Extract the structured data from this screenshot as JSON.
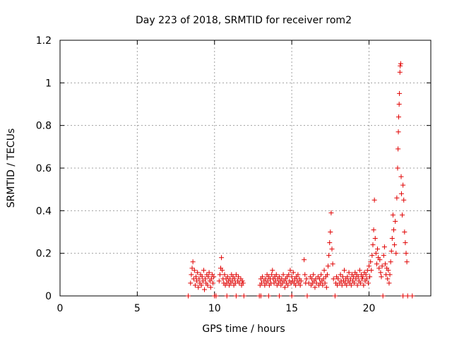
{
  "chart_data": {
    "type": "scatter",
    "title": "Day 223 of 2018, SRMTID for receiver rom2",
    "xlabel": "GPS time / hours",
    "ylabel": "SRMTID / TECUs",
    "xlim": [
      0,
      24
    ],
    "ylim": [
      0,
      1.2
    ],
    "xticks": [
      0,
      5,
      10,
      15,
      20
    ],
    "yticks": [
      0,
      0.2,
      0.4,
      0.6,
      0.8,
      1,
      1.2
    ],
    "xtick_labels": [
      "0",
      "5",
      "10",
      "15",
      "20"
    ],
    "ytick_labels": [
      "0",
      "0.2",
      "0.4",
      "0.6",
      "0.8",
      "1",
      "1.2"
    ],
    "grid": true,
    "marker": "+",
    "color": "#e00000",
    "series": [
      {
        "name": "rom2",
        "points": [
          [
            8.3,
            0.0
          ],
          [
            8.45,
            0.06
          ],
          [
            8.5,
            0.1
          ],
          [
            8.55,
            0.13
          ],
          [
            8.6,
            0.16
          ],
          [
            8.65,
            0.08
          ],
          [
            8.7,
            0.12
          ],
          [
            8.75,
            0.05
          ],
          [
            8.8,
            0.09
          ],
          [
            8.85,
            0.07
          ],
          [
            8.9,
            0.11
          ],
          [
            8.95,
            0.04
          ],
          [
            9.0,
            0.08
          ],
          [
            9.05,
            0.06
          ],
          [
            9.1,
            0.1
          ],
          [
            9.15,
            0.05
          ],
          [
            9.2,
            0.09
          ],
          [
            9.25,
            0.07
          ],
          [
            9.3,
            0.12
          ],
          [
            9.35,
            0.03
          ],
          [
            9.4,
            0.08
          ],
          [
            9.45,
            0.06
          ],
          [
            9.5,
            0.1
          ],
          [
            9.55,
            0.05
          ],
          [
            9.6,
            0.09
          ],
          [
            9.65,
            0.11
          ],
          [
            9.7,
            0.07
          ],
          [
            9.75,
            0.04
          ],
          [
            9.8,
            0.08
          ],
          [
            9.85,
            0.1
          ],
          [
            9.9,
            0.06
          ],
          [
            9.95,
            0.09
          ],
          [
            10.0,
            0.0
          ],
          [
            10.1,
            0.0
          ],
          [
            10.3,
            0.07
          ],
          [
            10.35,
            0.1
          ],
          [
            10.4,
            0.13
          ],
          [
            10.45,
            0.18
          ],
          [
            10.5,
            0.12
          ],
          [
            10.55,
            0.08
          ],
          [
            10.6,
            0.06
          ],
          [
            10.65,
            0.1
          ],
          [
            10.7,
            0.05
          ],
          [
            10.75,
            0.08
          ],
          [
            10.8,
            0.06
          ],
          [
            10.85,
            0.09
          ],
          [
            10.9,
            0.07
          ],
          [
            10.95,
            0.05
          ],
          [
            11.0,
            0.08
          ],
          [
            11.05,
            0.06
          ],
          [
            11.1,
            0.1
          ],
          [
            11.15,
            0.07
          ],
          [
            11.2,
            0.09
          ],
          [
            11.25,
            0.05
          ],
          [
            11.3,
            0.08
          ],
          [
            11.35,
            0.06
          ],
          [
            11.4,
            0.1
          ],
          [
            11.5,
            0.07
          ],
          [
            11.55,
            0.09
          ],
          [
            11.6,
            0.06
          ],
          [
            11.7,
            0.08
          ],
          [
            11.75,
            0.05
          ],
          [
            11.8,
            0.07
          ],
          [
            11.85,
            0.06
          ],
          [
            10.8,
            0.0
          ],
          [
            11.4,
            0.0
          ],
          [
            11.9,
            0.0
          ],
          [
            12.9,
            0.0
          ],
          [
            13.0,
            0.0
          ],
          [
            13.5,
            0.0
          ],
          [
            14.2,
            0.0
          ],
          [
            15.0,
            0.0
          ],
          [
            12.95,
            0.05
          ],
          [
            13.0,
            0.08
          ],
          [
            13.05,
            0.06
          ],
          [
            13.1,
            0.09
          ],
          [
            13.2,
            0.07
          ],
          [
            13.25,
            0.05
          ],
          [
            13.3,
            0.08
          ],
          [
            13.35,
            0.06
          ],
          [
            13.4,
            0.1
          ],
          [
            13.45,
            0.07
          ],
          [
            13.5,
            0.09
          ],
          [
            13.55,
            0.05
          ],
          [
            13.6,
            0.08
          ],
          [
            13.65,
            0.06
          ],
          [
            13.7,
            0.1
          ],
          [
            13.75,
            0.12
          ],
          [
            13.8,
            0.08
          ],
          [
            13.85,
            0.06
          ],
          [
            13.9,
            0.09
          ],
          [
            13.95,
            0.07
          ],
          [
            14.0,
            0.1
          ],
          [
            14.05,
            0.05
          ],
          [
            14.1,
            0.08
          ],
          [
            14.15,
            0.06
          ],
          [
            14.2,
            0.09
          ],
          [
            14.25,
            0.07
          ],
          [
            14.3,
            0.05
          ],
          [
            14.35,
            0.08
          ],
          [
            14.4,
            0.06
          ],
          [
            14.45,
            0.1
          ],
          [
            14.5,
            0.07
          ],
          [
            14.55,
            0.04
          ],
          [
            14.6,
            0.08
          ],
          [
            14.65,
            0.06
          ],
          [
            14.7,
            0.09
          ],
          [
            14.75,
            0.05
          ],
          [
            14.8,
            0.1
          ],
          [
            14.85,
            0.07
          ],
          [
            14.9,
            0.12
          ],
          [
            14.95,
            0.06
          ],
          [
            15.0,
            0.09
          ],
          [
            15.05,
            0.07
          ],
          [
            15.1,
            0.11
          ],
          [
            15.15,
            0.06
          ],
          [
            15.2,
            0.08
          ],
          [
            15.25,
            0.05
          ],
          [
            15.3,
            0.09
          ],
          [
            15.35,
            0.07
          ],
          [
            15.4,
            0.1
          ],
          [
            15.45,
            0.06
          ],
          [
            15.5,
            0.08
          ],
          [
            15.55,
            0.05
          ],
          [
            15.6,
            0.07
          ],
          [
            15.8,
            0.17
          ],
          [
            15.85,
            0.1
          ],
          [
            15.9,
            0.06
          ],
          [
            15.95,
            0.08
          ],
          [
            16.0,
            0.0
          ],
          [
            16.1,
            0.06
          ],
          [
            16.2,
            0.09
          ],
          [
            16.25,
            0.05
          ],
          [
            16.3,
            0.08
          ],
          [
            16.35,
            0.06
          ],
          [
            16.4,
            0.1
          ],
          [
            16.45,
            0.07
          ],
          [
            16.5,
            0.04
          ],
          [
            16.55,
            0.08
          ],
          [
            16.6,
            0.06
          ],
          [
            16.7,
            0.09
          ],
          [
            16.75,
            0.05
          ],
          [
            16.8,
            0.08
          ],
          [
            16.85,
            0.06
          ],
          [
            16.9,
            0.1
          ],
          [
            16.95,
            0.07
          ],
          [
            17.0,
            0.05
          ],
          [
            17.05,
            0.08
          ],
          [
            17.1,
            0.12
          ],
          [
            17.15,
            0.06
          ],
          [
            17.2,
            0.09
          ],
          [
            17.25,
            0.04
          ],
          [
            17.3,
            0.1
          ],
          [
            17.35,
            0.14
          ],
          [
            17.4,
            0.19
          ],
          [
            17.45,
            0.25
          ],
          [
            17.5,
            0.3
          ],
          [
            17.55,
            0.39
          ],
          [
            17.6,
            0.22
          ],
          [
            17.65,
            0.15
          ],
          [
            17.7,
            0.08
          ],
          [
            17.8,
            0.0
          ],
          [
            17.85,
            0.06
          ],
          [
            17.9,
            0.09
          ],
          [
            17.95,
            0.05
          ],
          [
            18.0,
            0.08
          ],
          [
            18.1,
            0.06
          ],
          [
            18.15,
            0.1
          ],
          [
            18.2,
            0.07
          ],
          [
            18.25,
            0.05
          ],
          [
            18.3,
            0.09
          ],
          [
            18.35,
            0.07
          ],
          [
            18.4,
            0.12
          ],
          [
            18.45,
            0.06
          ],
          [
            18.5,
            0.08
          ],
          [
            18.55,
            0.05
          ],
          [
            18.6,
            0.09
          ],
          [
            18.65,
            0.07
          ],
          [
            18.7,
            0.11
          ],
          [
            18.75,
            0.06
          ],
          [
            18.8,
            0.08
          ],
          [
            18.85,
            0.05
          ],
          [
            18.9,
            0.1
          ],
          [
            18.95,
            0.07
          ],
          [
            19.0,
            0.09
          ],
          [
            19.05,
            0.06
          ],
          [
            19.1,
            0.11
          ],
          [
            19.15,
            0.08
          ],
          [
            19.2,
            0.1
          ],
          [
            19.25,
            0.05
          ],
          [
            19.3,
            0.09
          ],
          [
            19.35,
            0.07
          ],
          [
            19.4,
            0.12
          ],
          [
            19.45,
            0.06
          ],
          [
            19.5,
            0.1
          ],
          [
            19.55,
            0.08
          ],
          [
            19.6,
            0.09
          ],
          [
            19.65,
            0.05
          ],
          [
            19.7,
            0.11
          ],
          [
            19.75,
            0.07
          ],
          [
            19.8,
            0.1
          ],
          [
            19.85,
            0.08
          ],
          [
            19.9,
            0.12
          ],
          [
            19.95,
            0.06
          ],
          [
            20.0,
            0.14
          ],
          [
            20.05,
            0.09
          ],
          [
            20.1,
            0.16
          ],
          [
            20.15,
            0.12
          ],
          [
            20.2,
            0.19
          ],
          [
            20.25,
            0.24
          ],
          [
            20.3,
            0.31
          ],
          [
            20.35,
            0.45
          ],
          [
            20.4,
            0.27
          ],
          [
            20.45,
            0.2
          ],
          [
            20.5,
            0.15
          ],
          [
            20.55,
            0.22
          ],
          [
            20.6,
            0.18
          ],
          [
            20.65,
            0.13
          ],
          [
            20.7,
            0.17
          ],
          [
            20.75,
            0.11
          ],
          [
            20.8,
            0.09
          ],
          [
            20.85,
            0.14
          ],
          [
            20.9,
            0.0
          ],
          [
            20.95,
            0.19
          ],
          [
            21.0,
            0.23
          ],
          [
            21.05,
            0.15
          ],
          [
            21.1,
            0.1
          ],
          [
            21.15,
            0.13
          ],
          [
            21.2,
            0.08
          ],
          [
            21.25,
            0.12
          ],
          [
            21.3,
            0.06
          ],
          [
            21.35,
            0.1
          ],
          [
            21.4,
            0.16
          ],
          [
            21.45,
            0.21
          ],
          [
            21.5,
            0.27
          ],
          [
            21.55,
            0.38
          ],
          [
            21.6,
            0.31
          ],
          [
            21.65,
            0.24
          ],
          [
            21.7,
            0.35
          ],
          [
            21.75,
            0.2
          ],
          [
            21.8,
            0.46
          ],
          [
            21.85,
            0.6
          ],
          [
            21.88,
            0.69
          ],
          [
            21.9,
            0.77
          ],
          [
            21.92,
            0.84
          ],
          [
            21.95,
            0.9
          ],
          [
            21.97,
            0.95
          ],
          [
            22.0,
            1.05
          ],
          [
            22.02,
            1.08
          ],
          [
            22.05,
            1.09
          ],
          [
            22.08,
            0.56
          ],
          [
            22.1,
            0.48
          ],
          [
            22.15,
            0.38
          ],
          [
            22.2,
            0.52
          ],
          [
            22.25,
            0.45
          ],
          [
            22.3,
            0.3
          ],
          [
            22.35,
            0.25
          ],
          [
            22.4,
            0.2
          ],
          [
            22.45,
            0.16
          ],
          [
            22.2,
            0.0
          ],
          [
            22.5,
            0.0
          ],
          [
            22.8,
            0.0
          ]
        ]
      }
    ]
  }
}
